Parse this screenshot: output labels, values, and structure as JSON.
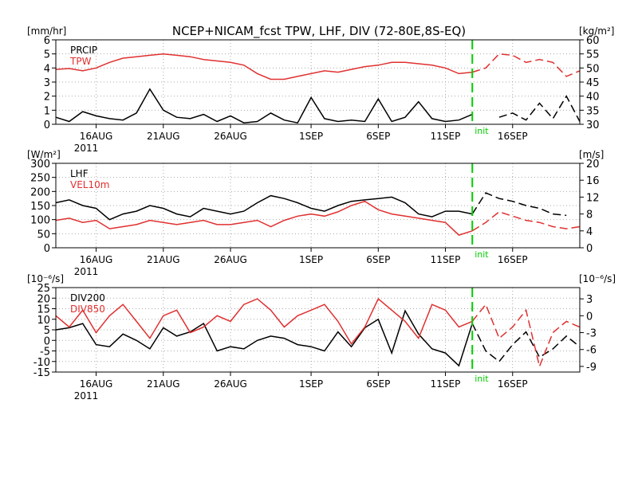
{
  "figure": {
    "title": "NCEP+NICAM_fcst TPW, LHF, DIV (72-80E,8S-EQ)",
    "init_label": "init",
    "year_label": "2011",
    "date_ticks": [
      "16AUG",
      "21AUG",
      "26AUG",
      "1SEP",
      "6SEP",
      "11SEP",
      "16SEP"
    ]
  },
  "colors": {
    "series_black": "#000000",
    "series_red": "#e03030",
    "init_line": "#00cc00",
    "grid": "#aaaaaa"
  },
  "chart_data": [
    {
      "type": "line",
      "x_start": "2011-08-13",
      "x_end": "2011-09-21",
      "init_date": "2011-09-13",
      "grid": true,
      "left_axis": {
        "unit": "[mm/hr]",
        "ylim": [
          0,
          6
        ],
        "ticks": [
          0,
          1,
          2,
          3,
          4,
          5,
          6
        ]
      },
      "right_axis": {
        "unit": "[kg/m²]",
        "ylim": [
          30,
          60
        ],
        "ticks": [
          30,
          35,
          40,
          45,
          50,
          55,
          60
        ]
      },
      "series": [
        {
          "name": "PRCIP",
          "axis": "left",
          "color": "#000000",
          "x": [
            "2011-08-13",
            "2011-08-14",
            "2011-08-15",
            "2011-08-16",
            "2011-08-17",
            "2011-08-18",
            "2011-08-19",
            "2011-08-20",
            "2011-08-21",
            "2011-08-22",
            "2011-08-23",
            "2011-08-24",
            "2011-08-25",
            "2011-08-26",
            "2011-08-27",
            "2011-08-28",
            "2011-08-29",
            "2011-08-30",
            "2011-08-31",
            "2011-09-01",
            "2011-09-02",
            "2011-09-03",
            "2011-09-04",
            "2011-09-05",
            "2011-09-06",
            "2011-09-07",
            "2011-09-08",
            "2011-09-09",
            "2011-09-10",
            "2011-09-11",
            "2011-09-12",
            "2011-09-13",
            "2011-09-14",
            "2011-09-15",
            "2011-09-16",
            "2011-09-17",
            "2011-09-18",
            "2011-09-19",
            "2011-09-20",
            "2011-09-21"
          ],
          "values": [
            0.5,
            0.2,
            0.9,
            0.6,
            0.4,
            0.3,
            0.8,
            2.5,
            1.0,
            0.5,
            0.4,
            0.7,
            0.2,
            0.6,
            0.1,
            0.2,
            0.8,
            0.3,
            0.1,
            1.9,
            0.4,
            0.2,
            0.3,
            0.2,
            1.8,
            0.2,
            0.5,
            1.6,
            0.4,
            0.2,
            0.3,
            0.7,
            null,
            0.5,
            0.8,
            0.3,
            1.5,
            0.4,
            2.0,
            0.2
          ]
        },
        {
          "name": "TPW",
          "axis": "right",
          "color": "#e03030",
          "x": [
            "2011-08-13",
            "2011-08-14",
            "2011-08-15",
            "2011-08-16",
            "2011-08-17",
            "2011-08-18",
            "2011-08-19",
            "2011-08-20",
            "2011-08-21",
            "2011-08-22",
            "2011-08-23",
            "2011-08-24",
            "2011-08-25",
            "2011-08-26",
            "2011-08-27",
            "2011-08-28",
            "2011-08-29",
            "2011-08-30",
            "2011-08-31",
            "2011-09-01",
            "2011-09-02",
            "2011-09-03",
            "2011-09-04",
            "2011-09-05",
            "2011-09-06",
            "2011-09-07",
            "2011-09-08",
            "2011-09-09",
            "2011-09-10",
            "2011-09-11",
            "2011-09-12",
            "2011-09-13",
            "2011-09-14",
            "2011-09-15",
            "2011-09-16",
            "2011-09-17",
            "2011-09-18",
            "2011-09-19",
            "2011-09-20",
            "2011-09-21"
          ],
          "values": [
            49.5,
            49.8,
            49,
            50,
            52,
            53.5,
            54,
            54.5,
            55,
            54.5,
            54,
            53,
            52.5,
            52,
            51,
            48,
            46,
            46,
            47,
            48,
            49,
            48.5,
            49.5,
            50.5,
            51,
            52,
            52,
            51.5,
            51,
            50,
            48,
            48.5,
            50,
            55,
            54.5,
            52,
            53,
            52,
            47,
            49
          ]
        }
      ]
    },
    {
      "type": "line",
      "x_start": "2011-08-13",
      "x_end": "2011-09-21",
      "init_date": "2011-09-13",
      "grid": true,
      "left_axis": {
        "unit": "[W/m²]",
        "ylim": [
          0,
          300
        ],
        "ticks": [
          0,
          50,
          100,
          150,
          200,
          250,
          300
        ]
      },
      "right_axis": {
        "unit": "[m/s]",
        "ylim": [
          0,
          20
        ],
        "ticks": [
          0,
          4,
          8,
          12,
          16,
          20
        ]
      },
      "series": [
        {
          "name": "LHF",
          "axis": "left",
          "color": "#000000",
          "x": [
            "2011-08-13",
            "2011-08-14",
            "2011-08-15",
            "2011-08-16",
            "2011-08-17",
            "2011-08-18",
            "2011-08-19",
            "2011-08-20",
            "2011-08-21",
            "2011-08-22",
            "2011-08-23",
            "2011-08-24",
            "2011-08-25",
            "2011-08-26",
            "2011-08-27",
            "2011-08-28",
            "2011-08-29",
            "2011-08-30",
            "2011-08-31",
            "2011-09-01",
            "2011-09-02",
            "2011-09-03",
            "2011-09-04",
            "2011-09-05",
            "2011-09-06",
            "2011-09-07",
            "2011-09-08",
            "2011-09-09",
            "2011-09-10",
            "2011-09-11",
            "2011-09-12",
            "2011-09-13",
            "2011-09-14",
            "2011-09-15",
            "2011-09-16",
            "2011-09-17",
            "2011-09-18",
            "2011-09-19",
            "2011-09-20",
            "2011-09-21"
          ],
          "values": [
            160,
            170,
            150,
            140,
            100,
            120,
            130,
            150,
            140,
            120,
            110,
            140,
            130,
            120,
            130,
            160,
            185,
            175,
            160,
            140,
            130,
            150,
            165,
            170,
            175,
            180,
            160,
            120,
            110,
            130,
            130,
            120,
            195,
            175,
            165,
            150,
            140,
            120,
            115,
            null
          ]
        },
        {
          "name": "VEL10m",
          "axis": "right",
          "color": "#e03030",
          "x": [
            "2011-08-13",
            "2011-08-14",
            "2011-08-15",
            "2011-08-16",
            "2011-08-17",
            "2011-08-18",
            "2011-08-19",
            "2011-08-20",
            "2011-08-21",
            "2011-08-22",
            "2011-08-23",
            "2011-08-24",
            "2011-08-25",
            "2011-08-26",
            "2011-08-27",
            "2011-08-28",
            "2011-08-29",
            "2011-08-30",
            "2011-08-31",
            "2011-09-01",
            "2011-09-02",
            "2011-09-03",
            "2011-09-04",
            "2011-09-05",
            "2011-09-06",
            "2011-09-07",
            "2011-09-08",
            "2011-09-09",
            "2011-09-10",
            "2011-09-11",
            "2011-09-12",
            "2011-09-13",
            "2011-09-14",
            "2011-09-15",
            "2011-09-16",
            "2011-09-17",
            "2011-09-18",
            "2011-09-19",
            "2011-09-20",
            "2011-09-21"
          ],
          "values": [
            6.5,
            7,
            6,
            6.5,
            4.5,
            5,
            5.5,
            6.5,
            6,
            5.5,
            6,
            6.5,
            5.5,
            5.5,
            6,
            6.5,
            5,
            6.5,
            7.5,
            8,
            7.5,
            8.5,
            10,
            11,
            9,
            8,
            7.5,
            7,
            6.5,
            6,
            3,
            4,
            6,
            8.5,
            7.5,
            6.5,
            6,
            5,
            4.5,
            5
          ]
        }
      ]
    },
    {
      "type": "line",
      "x_start": "2011-08-13",
      "x_end": "2011-09-21",
      "init_date": "2011-09-13",
      "grid": true,
      "left_axis": {
        "unit": "[10⁻⁶/s]",
        "ylim": [
          -15,
          25
        ],
        "ticks": [
          -15,
          -10,
          -5,
          0,
          5,
          10,
          15,
          20,
          25
        ]
      },
      "right_axis": {
        "unit": "[10⁻⁶/s]",
        "ylim": [
          -10,
          5
        ],
        "ticks": [
          -9,
          -6,
          -3,
          0,
          3
        ]
      },
      "series": [
        {
          "name": "DIV200",
          "axis": "left",
          "color": "#000000",
          "x": [
            "2011-08-13",
            "2011-08-14",
            "2011-08-15",
            "2011-08-16",
            "2011-08-17",
            "2011-08-18",
            "2011-08-19",
            "2011-08-20",
            "2011-08-21",
            "2011-08-22",
            "2011-08-23",
            "2011-08-24",
            "2011-08-25",
            "2011-08-26",
            "2011-08-27",
            "2011-08-28",
            "2011-08-29",
            "2011-08-30",
            "2011-08-31",
            "2011-09-01",
            "2011-09-02",
            "2011-09-03",
            "2011-09-04",
            "2011-09-05",
            "2011-09-06",
            "2011-09-07",
            "2011-09-08",
            "2011-09-09",
            "2011-09-10",
            "2011-09-11",
            "2011-09-12",
            "2011-09-13",
            "2011-09-14",
            "2011-09-15",
            "2011-09-16",
            "2011-09-17",
            "2011-09-18",
            "2011-09-19",
            "2011-09-20",
            "2011-09-21"
          ],
          "values": [
            5,
            6,
            8,
            -2,
            -3,
            3,
            0,
            -4,
            6,
            2,
            4,
            8,
            -5,
            -3,
            -4,
            0,
            2,
            1,
            -2,
            -3,
            -5,
            4,
            -3,
            6,
            10,
            -6,
            14,
            3,
            -4,
            -6,
            -12,
            8,
            -5,
            -10,
            -2,
            4,
            -8,
            -4,
            2,
            -3
          ]
        },
        {
          "name": "DIV850",
          "axis": "right",
          "color": "#e03030",
          "x": [
            "2011-08-13",
            "2011-08-14",
            "2011-08-15",
            "2011-08-16",
            "2011-08-17",
            "2011-08-18",
            "2011-08-19",
            "2011-08-20",
            "2011-08-21",
            "2011-08-22",
            "2011-08-23",
            "2011-08-24",
            "2011-08-25",
            "2011-08-26",
            "2011-08-27",
            "2011-08-28",
            "2011-08-29",
            "2011-08-30",
            "2011-08-31",
            "2011-09-01",
            "2011-09-02",
            "2011-09-03",
            "2011-09-04",
            "2011-09-05",
            "2011-09-06",
            "2011-09-07",
            "2011-09-08",
            "2011-09-09",
            "2011-09-10",
            "2011-09-11",
            "2011-09-12",
            "2011-09-13",
            "2011-09-14",
            "2011-09-15",
            "2011-09-16",
            "2011-09-17",
            "2011-09-18",
            "2011-09-19",
            "2011-09-20",
            "2011-09-21"
          ],
          "values": [
            0,
            -2,
            1,
            -3,
            0,
            2,
            -1,
            -4,
            0,
            1,
            -3,
            -2,
            0,
            -1,
            2,
            3,
            1,
            -2,
            0,
            1,
            2,
            -1,
            -5,
            -2,
            3,
            1,
            -1,
            -4,
            2,
            1,
            -2,
            -1,
            2,
            -4,
            -2,
            1,
            -9,
            -3,
            -1,
            -2
          ]
        }
      ]
    }
  ]
}
